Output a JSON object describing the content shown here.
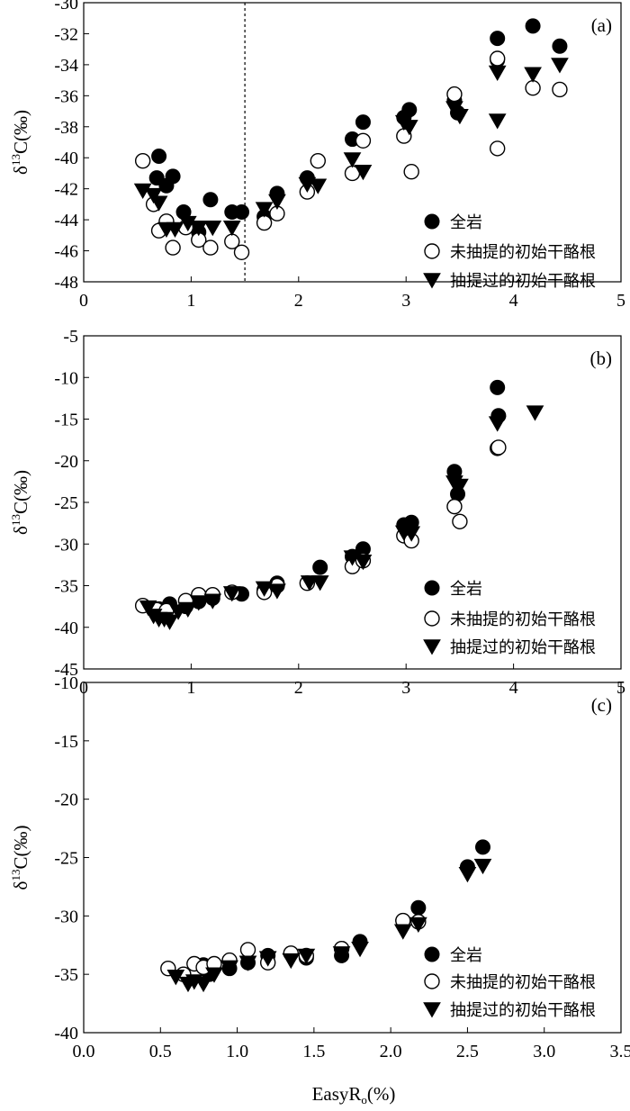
{
  "figure": {
    "xlabel_main": "EasyR",
    "xlabel_sub": "o",
    "xlabel_unit": "(%)"
  },
  "chart_data": [
    {
      "type": "scatter",
      "panel_label": "(a)",
      "ylabel": "δ13C(‰)",
      "xlim": [
        0,
        5
      ],
      "ylim": [
        -48,
        -30
      ],
      "xticks": [
        0,
        1,
        2,
        3,
        4,
        5
      ],
      "xtick_labels": [
        "0",
        "1",
        "2",
        "3",
        "4",
        "5"
      ],
      "yticks": [
        -48,
        -46,
        -44,
        -42,
        -40,
        -38,
        -36,
        -34,
        -32,
        -30
      ],
      "ytick_labels": [
        "-48",
        "-46",
        "-44",
        "-42",
        "-40",
        "-38",
        "-36",
        "-34",
        "-32",
        "-30"
      ],
      "reference_line_x": 1.5,
      "legend_position": "right",
      "series": [
        {
          "name": "全岩",
          "marker": "filled-circle",
          "points": [
            [
              0.7,
              -39.9
            ],
            [
              0.68,
              -41.3
            ],
            [
              0.77,
              -41.8
            ],
            [
              0.83,
              -41.2
            ],
            [
              0.93,
              -43.5
            ],
            [
              1.07,
              -44.8
            ],
            [
              1.18,
              -42.7
            ],
            [
              1.38,
              -43.5
            ],
            [
              1.47,
              -43.5
            ],
            [
              1.68,
              -43.8
            ],
            [
              1.8,
              -42.3
            ],
            [
              2.08,
              -41.3
            ],
            [
              2.5,
              -38.8
            ],
            [
              2.6,
              -37.7
            ],
            [
              2.98,
              -37.4
            ],
            [
              3.03,
              -36.9
            ],
            [
              3.45,
              -36.3
            ],
            [
              3.48,
              -37.1
            ],
            [
              3.85,
              -32.3
            ],
            [
              3.85,
              -33.7
            ],
            [
              4.18,
              -31.5
            ],
            [
              4.43,
              -32.8
            ]
          ]
        },
        {
          "name": "未抽提的初始干酪根",
          "marker": "open-circle",
          "points": [
            [
              0.55,
              -40.2
            ],
            [
              0.65,
              -43.0
            ],
            [
              0.7,
              -44.7
            ],
            [
              0.77,
              -44.1
            ],
            [
              0.83,
              -45.8
            ],
            [
              0.95,
              -44.5
            ],
            [
              1.07,
              -45.3
            ],
            [
              1.18,
              -45.8
            ],
            [
              1.38,
              -45.4
            ],
            [
              1.47,
              -46.1
            ],
            [
              1.68,
              -44.2
            ],
            [
              1.8,
              -43.6
            ],
            [
              2.08,
              -42.2
            ],
            [
              2.18,
              -40.2
            ],
            [
              2.5,
              -41.0
            ],
            [
              2.6,
              -38.9
            ],
            [
              2.98,
              -38.6
            ],
            [
              3.05,
              -40.9
            ],
            [
              3.45,
              -35.9
            ],
            [
              3.85,
              -33.6
            ],
            [
              3.85,
              -39.4
            ],
            [
              4.18,
              -35.5
            ],
            [
              4.43,
              -35.6
            ]
          ]
        },
        {
          "name": "抽提过的初始干酪根",
          "marker": "filled-triangle-down",
          "points": [
            [
              0.55,
              -42.1
            ],
            [
              0.65,
              -42.4
            ],
            [
              0.7,
              -42.9
            ],
            [
              0.77,
              -44.6
            ],
            [
              0.85,
              -44.6
            ],
            [
              0.97,
              -44.2
            ],
            [
              1.07,
              -44.5
            ],
            [
              1.2,
              -44.5
            ],
            [
              1.38,
              -44.5
            ],
            [
              1.68,
              -43.3
            ],
            [
              1.8,
              -42.8
            ],
            [
              2.08,
              -41.7
            ],
            [
              2.18,
              -41.8
            ],
            [
              2.5,
              -40.1
            ],
            [
              2.6,
              -40.9
            ],
            [
              2.98,
              -37.7
            ],
            [
              3.03,
              -38.0
            ],
            [
              3.45,
              -36.8
            ],
            [
              3.5,
              -37.3
            ],
            [
              3.85,
              -34.5
            ],
            [
              3.85,
              -37.6
            ],
            [
              4.18,
              -34.6
            ],
            [
              4.43,
              -34.0
            ]
          ]
        }
      ]
    },
    {
      "type": "scatter",
      "panel_label": "(b)",
      "ylabel": "δ13C(‰)",
      "xlim": [
        0,
        5
      ],
      "ylim": [
        -45,
        -5
      ],
      "xticks": [
        0,
        1,
        2,
        3,
        4,
        5
      ],
      "xtick_labels": [
        "0",
        "1",
        "2",
        "3",
        "4",
        "5"
      ],
      "yticks": [
        -45,
        -40,
        -35,
        -30,
        -25,
        -20,
        -15,
        -10,
        -5
      ],
      "ytick_labels": [
        "-45",
        "-40",
        "-35",
        "-30",
        "-25",
        "-20",
        "-15",
        "-10",
        "-5"
      ],
      "legend_position": "right",
      "series": [
        {
          "name": "全岩",
          "marker": "filled-circle",
          "points": [
            [
              0.7,
              -37.8
            ],
            [
              0.8,
              -37.2
            ],
            [
              0.95,
              -37.5
            ],
            [
              1.07,
              -36.9
            ],
            [
              1.2,
              -36.5
            ],
            [
              1.47,
              -36.0
            ],
            [
              1.68,
              -35.5
            ],
            [
              1.8,
              -34.7
            ],
            [
              2.2,
              -32.8
            ],
            [
              2.5,
              -31.5
            ],
            [
              2.6,
              -30.6
            ],
            [
              2.98,
              -27.7
            ],
            [
              3.05,
              -27.4
            ],
            [
              3.45,
              -21.3
            ],
            [
              3.48,
              -24.0
            ],
            [
              3.85,
              -11.2
            ],
            [
              3.86,
              -14.6
            ]
          ]
        },
        {
          "name": "未抽提的初始干酪根",
          "marker": "open-circle",
          "points": [
            [
              0.55,
              -37.4
            ],
            [
              0.68,
              -37.9
            ],
            [
              0.77,
              -38.0
            ],
            [
              0.95,
              -36.8
            ],
            [
              1.07,
              -36.1
            ],
            [
              1.2,
              -36.1
            ],
            [
              1.38,
              -35.8
            ],
            [
              1.68,
              -35.8
            ],
            [
              1.8,
              -35.0
            ],
            [
              2.08,
              -34.7
            ],
            [
              2.5,
              -32.7
            ],
            [
              2.6,
              -32.0
            ],
            [
              2.98,
              -29.0
            ],
            [
              3.05,
              -29.6
            ],
            [
              3.45,
              -25.5
            ],
            [
              3.5,
              -27.3
            ],
            [
              3.85,
              -18.5
            ],
            [
              3.86,
              -18.4
            ]
          ]
        },
        {
          "name": "抽提过的初始干酪根",
          "marker": "filled-triangle-down",
          "points": [
            [
              0.6,
              -37.6
            ],
            [
              0.65,
              -38.6
            ],
            [
              0.7,
              -39.0
            ],
            [
              0.75,
              -39.0
            ],
            [
              0.8,
              -39.3
            ],
            [
              0.88,
              -38.1
            ],
            [
              0.97,
              -37.8
            ],
            [
              1.07,
              -37.0
            ],
            [
              1.2,
              -36.8
            ],
            [
              1.38,
              -35.9
            ],
            [
              1.68,
              -35.3
            ],
            [
              1.8,
              -35.6
            ],
            [
              2.1,
              -34.6
            ],
            [
              2.2,
              -34.6
            ],
            [
              2.5,
              -31.6
            ],
            [
              2.6,
              -32.1
            ],
            [
              2.98,
              -28.6
            ],
            [
              3.05,
              -28.7
            ],
            [
              3.45,
              -22.6
            ],
            [
              3.5,
              -23.0
            ],
            [
              3.85,
              -15.5
            ],
            [
              4.2,
              -14.2
            ]
          ]
        }
      ]
    },
    {
      "type": "scatter",
      "panel_label": "(c)",
      "ylabel": "δ13C(‰)",
      "xlim": [
        0,
        3.5
      ],
      "ylim": [
        -40,
        -10
      ],
      "xticks": [
        0,
        0.5,
        1,
        1.5,
        2,
        2.5,
        3,
        3.5
      ],
      "xtick_labels": [
        "0.0",
        "0.5",
        "1.0",
        "1.5",
        "2.0",
        "2.5",
        "3.0",
        "3.5"
      ],
      "yticks": [
        -40,
        -35,
        -30,
        -25,
        -20,
        -15,
        -10
      ],
      "ytick_labels": [
        "-40",
        "-35",
        "-30",
        "-25",
        "-20",
        "-15",
        "-10"
      ],
      "legend_position": "right",
      "series": [
        {
          "name": "全岩",
          "marker": "filled-circle",
          "points": [
            [
              0.78,
              -34.2
            ],
            [
              0.82,
              -35.0
            ],
            [
              0.95,
              -34.5
            ],
            [
              1.07,
              -34.0
            ],
            [
              1.2,
              -33.4
            ],
            [
              1.45,
              -33.6
            ],
            [
              1.68,
              -33.4
            ],
            [
              1.8,
              -32.2
            ],
            [
              2.08,
              -30.4
            ],
            [
              2.18,
              -29.3
            ],
            [
              2.5,
              -25.8
            ],
            [
              2.6,
              -24.1
            ]
          ]
        },
        {
          "name": "未抽提的初始干酪根",
          "marker": "open-circle",
          "points": [
            [
              0.55,
              -34.5
            ],
            [
              0.65,
              -35.0
            ],
            [
              0.72,
              -34.1
            ],
            [
              0.78,
              -34.4
            ],
            [
              0.85,
              -34.1
            ],
            [
              0.95,
              -33.8
            ],
            [
              1.07,
              -32.9
            ],
            [
              1.2,
              -34.0
            ],
            [
              1.35,
              -33.2
            ],
            [
              1.45,
              -33.4
            ],
            [
              1.68,
              -32.8
            ],
            [
              2.08,
              -30.4
            ],
            [
              2.18,
              -30.5
            ]
          ]
        },
        {
          "name": "抽提过的初始干酪根",
          "marker": "filled-triangle-down",
          "points": [
            [
              0.6,
              -35.2
            ],
            [
              0.68,
              -35.8
            ],
            [
              0.72,
              -35.6
            ],
            [
              0.78,
              -35.8
            ],
            [
              0.85,
              -35.0
            ],
            [
              0.95,
              -34.4
            ],
            [
              1.07,
              -34.0
            ],
            [
              1.2,
              -33.6
            ],
            [
              1.35,
              -33.8
            ],
            [
              1.45,
              -33.4
            ],
            [
              1.68,
              -33.2
            ],
            [
              1.8,
              -32.8
            ],
            [
              2.08,
              -31.3
            ],
            [
              2.18,
              -30.7
            ],
            [
              2.5,
              -26.4
            ],
            [
              2.6,
              -25.7
            ]
          ]
        }
      ]
    }
  ]
}
